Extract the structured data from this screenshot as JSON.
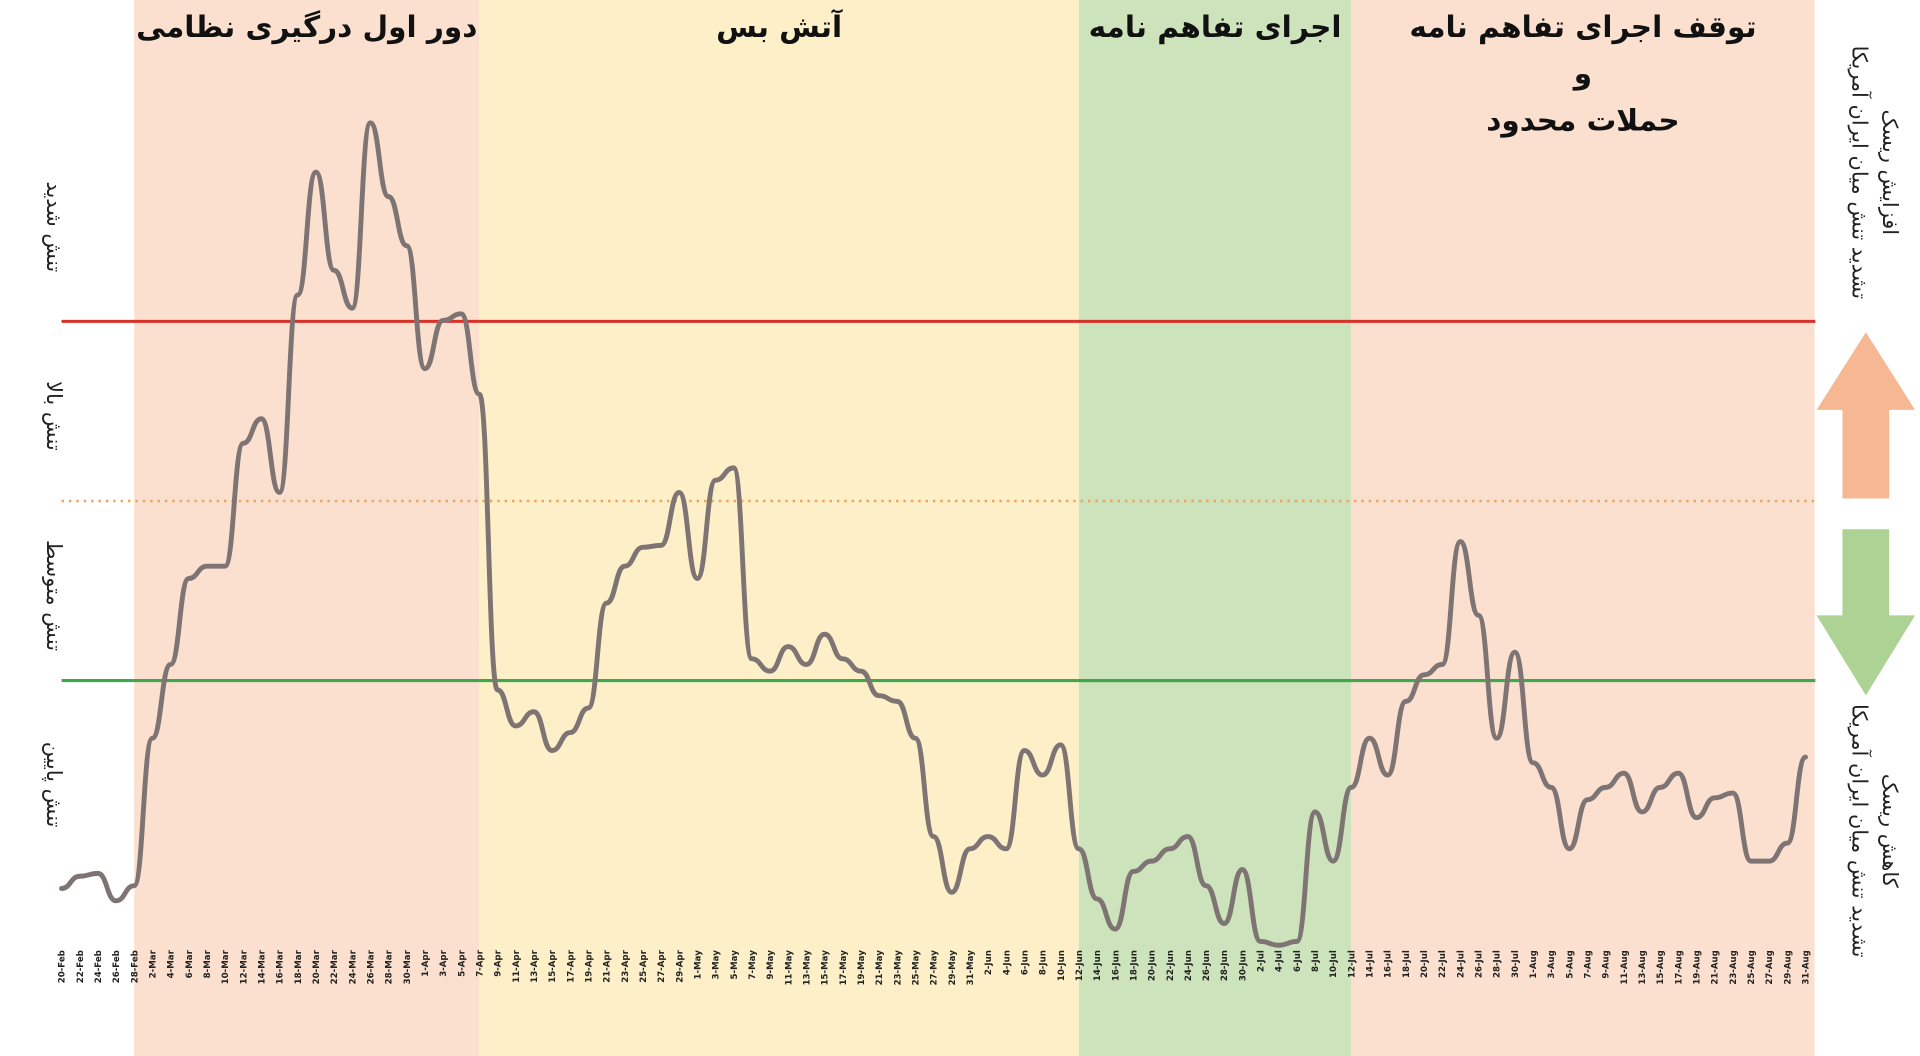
{
  "chart_data": {
    "type": "line",
    "ylim": [
      0,
      100
    ],
    "categories": [
      "20-Feb",
      "22-Feb",
      "24-Feb",
      "26-Feb",
      "28-Feb",
      "2-Mar",
      "4-Mar",
      "6-Mar",
      "8-Mar",
      "10-Mar",
      "12-Mar",
      "14-Mar",
      "16-Mar",
      "18-Mar",
      "20-Mar",
      "22-Mar",
      "24-Mar",
      "26-Mar",
      "28-Mar",
      "30-Mar",
      "1-Apr",
      "3-Apr",
      "5-Apr",
      "7-Apr",
      "9-Apr",
      "11-Apr",
      "13-Apr",
      "15-Apr",
      "17-Apr",
      "19-Apr",
      "21-Apr",
      "23-Apr",
      "25-Apr",
      "27-Apr",
      "29-Apr",
      "1-May",
      "3-May",
      "5-May",
      "7-May",
      "9-May",
      "11-May",
      "13-May",
      "15-May",
      "17-May",
      "19-May",
      "21-May",
      "23-May",
      "25-May",
      "27-May",
      "29-May",
      "31-May",
      "2-Jun",
      "4-Jun",
      "6-Jun",
      "8-Jun",
      "10-Jun",
      "12-Jun",
      "14-Jun",
      "16-Jun",
      "18-Jun",
      "20-Jun",
      "22-Jun",
      "24-Jun",
      "26-Jun",
      "28-Jun",
      "30-Jun",
      "2-Jul",
      "4-Jul",
      "6-Jul",
      "8-Jul",
      "10-Jul",
      "12-Jul",
      "14-Jul",
      "16-Jul",
      "18-Jul",
      "20-Jul",
      "22-Jul",
      "24-Jul",
      "26-Jul",
      "28-Jul",
      "30-Jul",
      "1-Aug",
      "3-Aug",
      "5-Aug",
      "7-Aug",
      "9-Aug",
      "11-Aug",
      "13-Aug",
      "15-Aug",
      "17-Aug",
      "19-Aug",
      "21-Aug",
      "23-Aug",
      "25-Aug",
      "27-Aug",
      "29-Aug",
      "31-Aug"
    ],
    "series": [
      {
        "color": "#7f7474",
        "values": [
          6,
          7.3,
          7.6,
          4.7,
          6.3,
          21.9,
          29.7,
          38.8,
          40.1,
          40.1,
          53.1,
          55.7,
          47.9,
          68.8,
          81.8,
          71.4,
          67.4,
          87,
          79.2,
          74,
          61,
          66.1,
          66.8,
          58.3,
          27,
          23.2,
          24.7,
          20.6,
          22.5,
          25.1,
          36.2,
          40.1,
          42.1,
          42.3,
          47.9,
          38.8,
          49.2,
          50.5,
          30.3,
          29,
          31.6,
          29.7,
          32.9,
          30.3,
          29,
          26.4,
          25.8,
          21.9,
          11.5,
          5.6,
          10.2,
          11.5,
          10.2,
          20.6,
          18,
          21.2,
          10.2,
          4.9,
          1.7,
          7.8,
          8.9,
          10.2,
          11.5,
          6.3,
          2.3,
          8,
          0.4,
          0,
          0.4,
          14.1,
          8.9,
          16.7,
          21.9,
          18,
          25.8,
          28.6,
          29.7,
          42.7,
          34.9,
          21.9,
          31,
          19.3,
          16.7,
          10.2,
          15.4,
          16.7,
          18.2,
          14.1,
          16.7,
          18.2,
          13.5,
          15.6,
          16.1,
          8.9,
          8.9,
          10.8,
          19.9
        ]
      }
    ],
    "regions": [
      {
        "lines": [
          "دور اول درگیری نظامی"
        ],
        "from": "28-Feb",
        "to": "7-Apr",
        "color": "#fbe0cf"
      },
      {
        "lines": [
          "آتش بس"
        ],
        "from": "7-Apr",
        "to": "12-Jun",
        "color": "#fdf0c8"
      },
      {
        "lines": [
          "اجرای تفاهم نامه"
        ],
        "from": "12-Jun",
        "to": "12-Jul",
        "color": "#cde3bb"
      },
      {
        "lines": [
          "توقف اجرای تفاهم نامه",
          "و",
          "حملات محدود"
        ],
        "from": "12-Jul",
        "to": "31-Aug",
        "color": "#fbe0cf"
      }
    ],
    "thresholds": [
      {
        "value": 66,
        "color": "#d7322a",
        "style": "solid"
      },
      {
        "value": 47,
        "color": "#f0a45a",
        "style": "dotted"
      },
      {
        "value": 28,
        "color": "#3fa84c",
        "style": "solid"
      }
    ],
    "band_labels": [
      {
        "text": "تنش شدید",
        "value": 76
      },
      {
        "text": "تنش بالا",
        "value": 56
      },
      {
        "text": "تنش متوسط",
        "value": 37
      },
      {
        "text": "تنش پایین",
        "value": 17
      }
    ],
    "right_labels": {
      "up": [
        "افزایش ریسک",
        "تشدید تنش میان ایران آمریکا"
      ],
      "down": [
        "کاهش ریسک",
        "تشدید تنش میان ایران آمریکا"
      ]
    }
  }
}
